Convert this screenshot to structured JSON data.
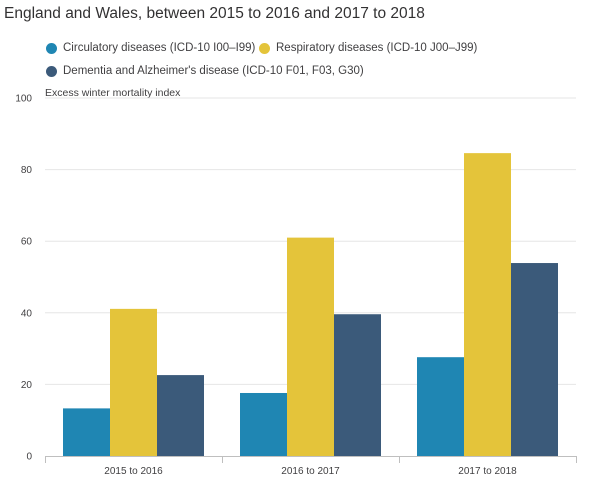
{
  "colors": {
    "circulatory": "#1f86b3",
    "respiratory": "#e4c43a",
    "dementia": "#3b5a7a",
    "grid": "#e6e6e6",
    "axis": "#bfbfbf"
  },
  "chart_data": {
    "type": "bar",
    "title": "England and Wales, between 2015 to 2016 and 2017 to 2018",
    "ylabel": "Excess winter mortality index",
    "xlabel": "",
    "ylim": [
      0,
      100
    ],
    "yticks": [
      "0",
      "20",
      "40",
      "60",
      "80",
      "100"
    ],
    "categories": [
      "2015 to 2016",
      "2016 to 2017",
      "2017 to 2018"
    ],
    "grid": true,
    "legend_position": "top",
    "series": [
      {
        "name": "Circulatory diseases (ICD-10 I00–I99)",
        "color": "#1f86b3",
        "values": [
          13.3,
          17.6,
          27.6
        ]
      },
      {
        "name": "Respiratory diseases (ICD-10 J00–J99)",
        "color": "#e4c43a",
        "values": [
          41.1,
          61.0,
          84.6
        ]
      },
      {
        "name": "Dementia and Alzheimer's disease (ICD-10 F01, F03, G30)",
        "color": "#3b5a7a",
        "values": [
          22.6,
          39.6,
          53.9
        ]
      }
    ]
  }
}
